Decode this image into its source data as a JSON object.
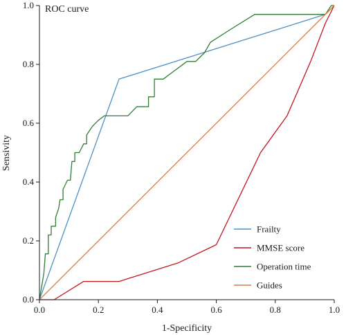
{
  "chart_data": {
    "type": "line",
    "title": "ROC curve",
    "xlabel": "1-Specificity",
    "ylabel": "Sensivity",
    "xlim": [
      0,
      1
    ],
    "ylim": [
      0,
      1
    ],
    "x_ticks": [
      "0.0",
      "0.2",
      "0.4",
      "0.6",
      "0.8",
      "1.0"
    ],
    "y_ticks": [
      "0.0",
      "0.2",
      "0.4",
      "0.6",
      "0.8",
      "1.0"
    ],
    "grid": false,
    "legend_position": "bottom-right",
    "series": [
      {
        "name": "Frailty",
        "color": "#4f8fc0",
        "points": [
          [
            0,
            0
          ],
          [
            0.27,
            0.75
          ],
          [
            0.97,
            0.97
          ],
          [
            1.0,
            1.0
          ]
        ]
      },
      {
        "name": "MMSE score",
        "color": "#c0151b",
        "points": [
          [
            0,
            0
          ],
          [
            0.05,
            0
          ],
          [
            0.15,
            0.062
          ],
          [
            0.27,
            0.062
          ],
          [
            0.47,
            0.125
          ],
          [
            0.6,
            0.187
          ],
          [
            0.75,
            0.5
          ],
          [
            0.84,
            0.625
          ],
          [
            0.92,
            0.81
          ],
          [
            0.97,
            0.94
          ],
          [
            1.0,
            1.0
          ]
        ]
      },
      {
        "name": "Operation time",
        "color": "#2e7d32",
        "points": [
          [
            0,
            0
          ],
          [
            0.015,
            0.09
          ],
          [
            0.02,
            0.156
          ],
          [
            0.03,
            0.156
          ],
          [
            0.03,
            0.22
          ],
          [
            0.04,
            0.22
          ],
          [
            0.04,
            0.25
          ],
          [
            0.055,
            0.25
          ],
          [
            0.055,
            0.28
          ],
          [
            0.065,
            0.31
          ],
          [
            0.07,
            0.34
          ],
          [
            0.08,
            0.34
          ],
          [
            0.08,
            0.375
          ],
          [
            0.095,
            0.406
          ],
          [
            0.105,
            0.406
          ],
          [
            0.11,
            0.47
          ],
          [
            0.12,
            0.47
          ],
          [
            0.12,
            0.5
          ],
          [
            0.135,
            0.5
          ],
          [
            0.15,
            0.53
          ],
          [
            0.16,
            0.53
          ],
          [
            0.16,
            0.56
          ],
          [
            0.18,
            0.59
          ],
          [
            0.2,
            0.61
          ],
          [
            0.22,
            0.625
          ],
          [
            0.3,
            0.625
          ],
          [
            0.33,
            0.656
          ],
          [
            0.37,
            0.656
          ],
          [
            0.37,
            0.69
          ],
          [
            0.39,
            0.69
          ],
          [
            0.39,
            0.75
          ],
          [
            0.42,
            0.75
          ],
          [
            0.46,
            0.78
          ],
          [
            0.5,
            0.81
          ],
          [
            0.53,
            0.81
          ],
          [
            0.56,
            0.84
          ],
          [
            0.58,
            0.875
          ],
          [
            0.65,
            0.92
          ],
          [
            0.73,
            0.97
          ],
          [
            0.85,
            0.97
          ],
          [
            0.97,
            0.97
          ],
          [
            0.99,
            1.0
          ],
          [
            1.0,
            1.0
          ]
        ]
      },
      {
        "name": "Guides",
        "color": "#e07a3f",
        "points": [
          [
            0,
            0
          ],
          [
            1,
            1
          ]
        ]
      }
    ]
  }
}
